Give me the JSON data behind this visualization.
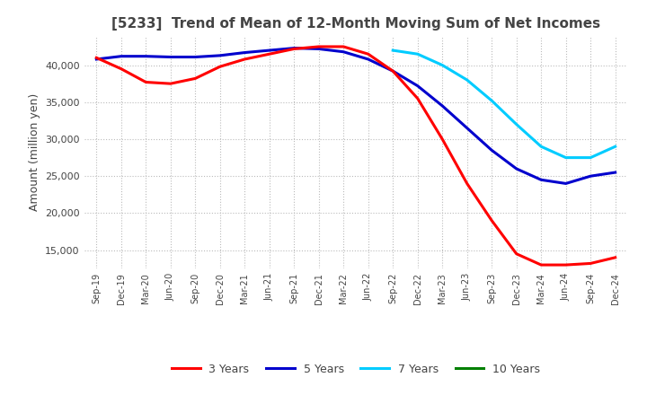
{
  "title": "[5233]  Trend of Mean of 12-Month Moving Sum of Net Incomes",
  "ylabel": "Amount (million yen)",
  "ylim": [
    12500,
    44000
  ],
  "yticks": [
    15000,
    20000,
    25000,
    30000,
    35000,
    40000
  ],
  "legend_labels": [
    "3 Years",
    "5 Years",
    "7 Years",
    "10 Years"
  ],
  "legend_colors": [
    "#ff0000",
    "#0000cd",
    "#00ccff",
    "#008000"
  ],
  "x_labels": [
    "Sep-19",
    "Dec-19",
    "Mar-20",
    "Jun-20",
    "Sep-20",
    "Dec-20",
    "Mar-21",
    "Jun-21",
    "Sep-21",
    "Dec-21",
    "Mar-22",
    "Jun-22",
    "Sep-22",
    "Dec-22",
    "Mar-23",
    "Jun-23",
    "Sep-23",
    "Dec-23",
    "Mar-24",
    "Jun-24",
    "Sep-24",
    "Dec-24"
  ],
  "series_3yr": [
    41000,
    39500,
    37700,
    37500,
    38200,
    39800,
    40800,
    41500,
    42200,
    42500,
    42500,
    41500,
    39200,
    35500,
    30000,
    24000,
    19000,
    14500,
    13000,
    13000,
    13200,
    14000
  ],
  "series_5yr": [
    40800,
    41200,
    41200,
    41100,
    41100,
    41300,
    41700,
    42000,
    42300,
    42200,
    41800,
    40800,
    39200,
    37200,
    34500,
    31500,
    28500,
    26000,
    24500,
    24000,
    25000,
    25500
  ],
  "series_7yr": [
    null,
    null,
    null,
    null,
    null,
    null,
    null,
    null,
    null,
    null,
    null,
    null,
    42000,
    41500,
    40000,
    38000,
    35200,
    32000,
    29000,
    27500,
    27500,
    29000
  ],
  "series_10yr": [
    null,
    null,
    null,
    null,
    null,
    null,
    null,
    null,
    null,
    null,
    null,
    null,
    null,
    null,
    null,
    null,
    null,
    null,
    null,
    null,
    null,
    null
  ],
  "background_color": "#ffffff",
  "grid_color": "#bbbbbb"
}
